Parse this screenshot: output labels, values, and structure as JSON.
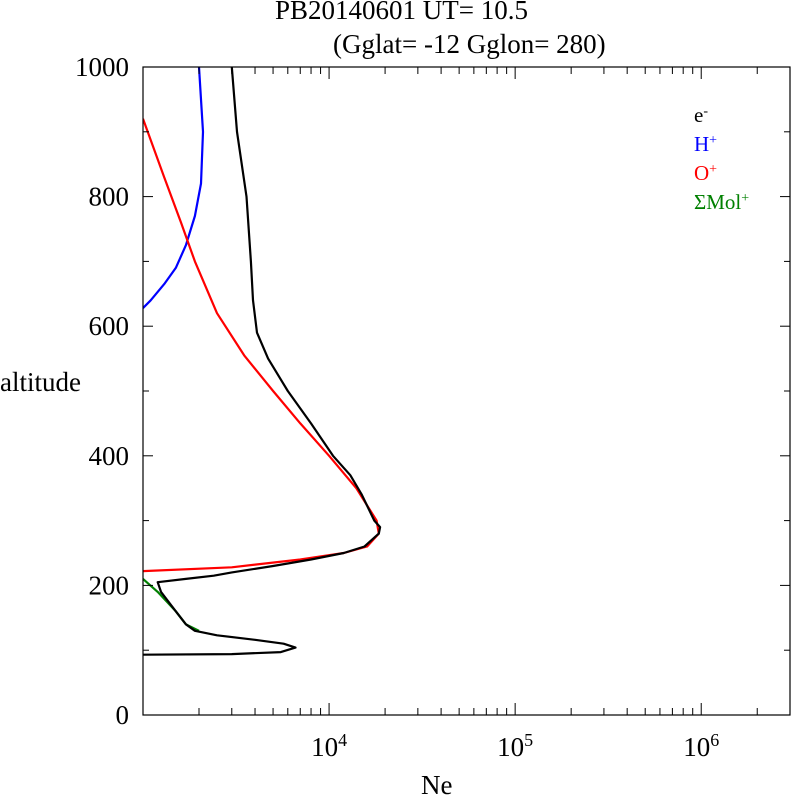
{
  "chart_data": {
    "type": "line",
    "title_line1": "PB20140601   UT=  10.5",
    "title_line2": "(Gglat= -12   Gglon=  280)",
    "xlabel": "Ne",
    "ylabel": "altitude",
    "x_scale": "log",
    "xlim": [
      1000,
      3000000
    ],
    "ylim": [
      0,
      1000
    ],
    "y_ticks": [
      0,
      200,
      400,
      600,
      800,
      1000
    ],
    "y_tick_labels": [
      "0",
      "200",
      "400",
      "600",
      "800",
      "1000"
    ],
    "x_ticks": [
      {
        "base": "10",
        "exp": "4",
        "value": 10000
      },
      {
        "base": "10",
        "exp": "5",
        "value": 100000
      },
      {
        "base": "10",
        "exp": "6",
        "value": 1000000
      }
    ],
    "grid": false,
    "legend_position": "top-right",
    "legend": [
      {
        "base": "e",
        "sup": "-",
        "color": "#000000"
      },
      {
        "base": "H",
        "sup": "+",
        "color": "#0000ff"
      },
      {
        "base": "O",
        "sup": "+",
        "color": "#ff0000"
      },
      {
        "base": "ΣMol",
        "sup": "+",
        "color": "#008000"
      }
    ],
    "series": [
      {
        "color": "#0000ff",
        "points": [
          [
            1000,
            628
          ],
          [
            1100,
            640
          ],
          [
            1300,
            665
          ],
          [
            1500,
            690
          ],
          [
            1700,
            725
          ],
          [
            1900,
            770
          ],
          [
            2050,
            820
          ],
          [
            2100,
            900
          ],
          [
            2000,
            1000
          ]
        ]
      },
      {
        "color": "#ff0000",
        "points": [
          [
            1000,
            222
          ],
          [
            3000,
            228
          ],
          [
            7000,
            240
          ],
          [
            12000,
            250
          ],
          [
            16000,
            260
          ],
          [
            18500,
            280
          ],
          [
            18000,
            300
          ],
          [
            14000,
            350
          ],
          [
            10000,
            400
          ],
          [
            7000,
            450
          ],
          [
            5000,
            500
          ],
          [
            3500,
            555
          ],
          [
            2500,
            620
          ],
          [
            1900,
            700
          ],
          [
            1600,
            760
          ],
          [
            1300,
            830
          ],
          [
            1000,
            920
          ]
        ]
      },
      {
        "color": "#008000",
        "points": [
          [
            1000,
            210
          ],
          [
            1200,
            190
          ],
          [
            1500,
            160
          ],
          [
            1700,
            140
          ],
          [
            2000,
            130
          ]
        ]
      },
      {
        "color": "#000000",
        "points": [
          [
            1000,
            93
          ],
          [
            3000,
            94
          ],
          [
            5500,
            97
          ],
          [
            6600,
            104
          ],
          [
            5700,
            110
          ],
          [
            4000,
            116
          ],
          [
            2500,
            123
          ],
          [
            1900,
            130
          ],
          [
            1700,
            140
          ],
          [
            1500,
            160
          ],
          [
            1250,
            190
          ],
          [
            1200,
            205
          ],
          [
            1700,
            210
          ],
          [
            2400,
            215
          ],
          [
            3000,
            220
          ],
          [
            5000,
            230
          ],
          [
            8000,
            240
          ],
          [
            12000,
            250
          ],
          [
            15500,
            260
          ],
          [
            18500,
            280
          ],
          [
            18800,
            290
          ],
          [
            17500,
            300
          ],
          [
            15000,
            340
          ],
          [
            13000,
            370
          ],
          [
            10500,
            400
          ],
          [
            8000,
            450
          ],
          [
            6000,
            500
          ],
          [
            4700,
            550
          ],
          [
            4100,
            590
          ],
          [
            3900,
            640
          ],
          [
            3800,
            700
          ],
          [
            3600,
            800
          ],
          [
            3200,
            900
          ],
          [
            3000,
            1000
          ]
        ]
      }
    ]
  }
}
